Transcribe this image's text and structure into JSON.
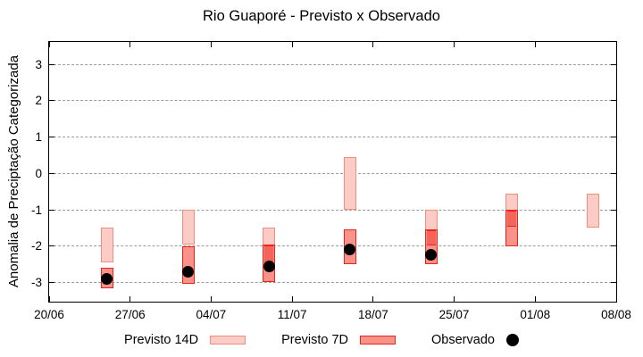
{
  "title": "Rio Guaporé - Previsto x Observado",
  "chart_data": {
    "type": "bar",
    "subtype": "floating-range-bars-with-scatter",
    "title": "Rio Guaporé - Previsto x Observado",
    "ylabel": "Anomalia de Preciptação Categorizada",
    "xlabel": "",
    "ylim": [
      -3.53,
      3.62
    ],
    "yticks": [
      3,
      2,
      1,
      0,
      -1,
      -2,
      -3
    ],
    "grid": "horizontal-dashed",
    "grid_color": "#9c9c9c",
    "x_axis": {
      "tick_labels": [
        "20/06",
        "27/06",
        "04/07",
        "11/07",
        "18/07",
        "25/07",
        "01/08",
        "08/08"
      ],
      "span_days": 49,
      "tick_interval_days": 7
    },
    "legend_position": "bottom-center",
    "series": [
      {
        "name": "Previsto 14D",
        "type": "range-bar",
        "fill": "#fbccc5",
        "border": "#f08d7c",
        "points": [
          {
            "date": "25/06",
            "day": 5,
            "high": -1.5,
            "low": -2.45
          },
          {
            "date": "02/07",
            "day": 12,
            "high": -1.0,
            "low": -1.95
          },
          {
            "date": "09/07",
            "day": 19,
            "high": -1.5,
            "low": -2.5
          },
          {
            "date": "16/07",
            "day": 26,
            "high": 0.45,
            "low": -1.0
          },
          {
            "date": "23/07",
            "day": 33,
            "high": -1.0,
            "low": -2.0
          },
          {
            "date": "30/07",
            "day": 40,
            "high": -0.55,
            "low": -1.5
          },
          {
            "date": "06/08",
            "day": 47,
            "high": -0.55,
            "low": -1.5
          }
        ]
      },
      {
        "name": "Previsto 7D",
        "type": "range-bar",
        "fill": "#f9938a",
        "border": "#e8251c",
        "overlap_fill": "#f3645a",
        "points": [
          {
            "date": "25/06",
            "day": 5,
            "high": -2.6,
            "low": -3.15
          },
          {
            "date": "02/07",
            "day": 12,
            "high": -2.0,
            "low": -3.05
          },
          {
            "date": "09/07",
            "day": 19,
            "high": -1.95,
            "low": -3.0
          },
          {
            "date": "16/07",
            "day": 26,
            "high": -1.55,
            "low": -2.5
          },
          {
            "date": "23/07",
            "day": 33,
            "high": -1.55,
            "low": -2.5
          },
          {
            "date": "30/07",
            "day": 40,
            "high": -1.0,
            "low": -2.0
          }
        ]
      },
      {
        "name": "Observado",
        "type": "scatter",
        "color": "#000000",
        "points": [
          {
            "date": "25/06",
            "day": 5,
            "value": -2.9
          },
          {
            "date": "02/07",
            "day": 12,
            "value": -2.7
          },
          {
            "date": "09/07",
            "day": 19,
            "value": -2.55
          },
          {
            "date": "16/07",
            "day": 26,
            "value": -2.1
          },
          {
            "date": "23/07",
            "day": 33,
            "value": -2.25
          }
        ]
      }
    ]
  },
  "legend": {
    "items": [
      {
        "label": "Previsto 14D"
      },
      {
        "label": "Previsto 7D"
      },
      {
        "label": "Observado"
      }
    ]
  }
}
